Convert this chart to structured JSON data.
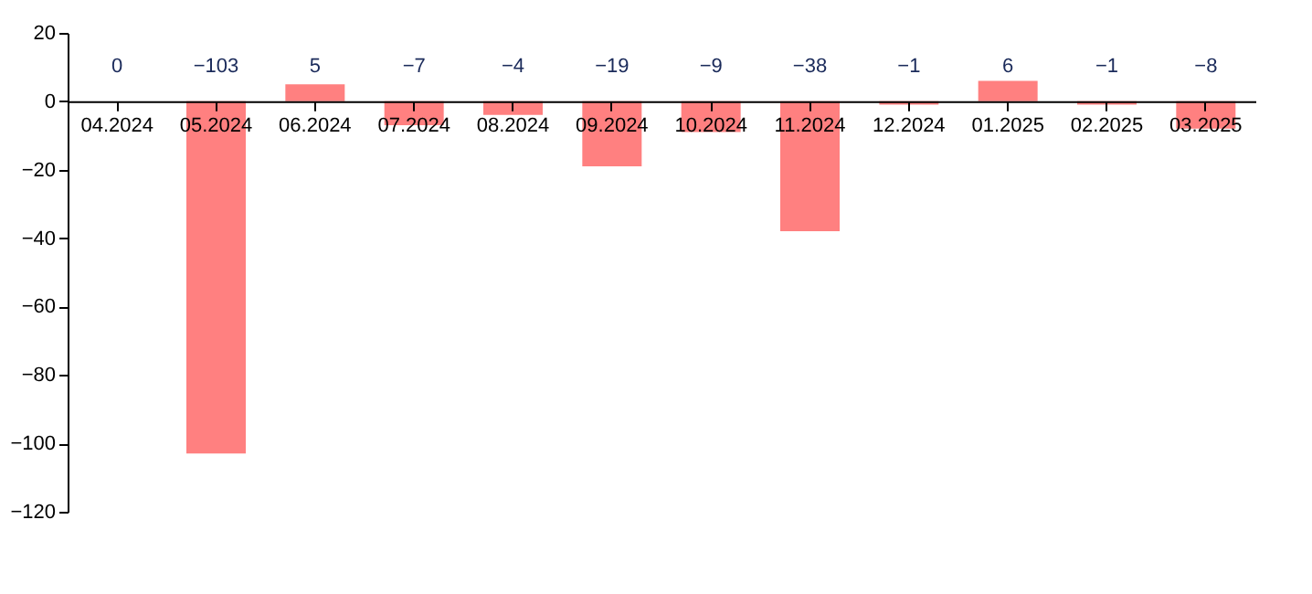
{
  "chart_data": {
    "type": "bar",
    "categories": [
      "04.2024",
      "05.2024",
      "06.2024",
      "07.2024",
      "08.2024",
      "09.2024",
      "10.2024",
      "11.2024",
      "12.2024",
      "01.2025",
      "02.2025",
      "03.2025"
    ],
    "values": [
      0,
      -103,
      5,
      -7,
      -4,
      -19,
      -9,
      -38,
      -1,
      6,
      -1,
      -8
    ],
    "color": "#ff8080",
    "ylim": [
      -120,
      20
    ],
    "yticks": [
      -120,
      -100,
      -80,
      -60,
      -40,
      -20,
      0,
      20
    ],
    "grid": false,
    "data_labels": true
  }
}
